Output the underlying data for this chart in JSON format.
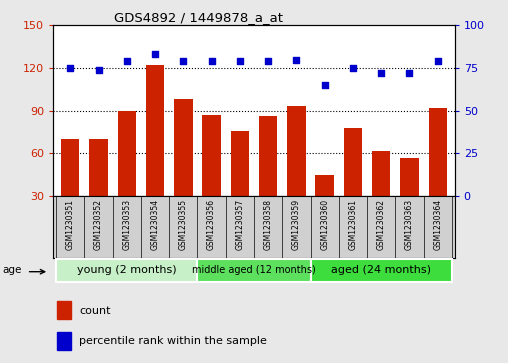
{
  "title": "GDS4892 / 1449878_a_at",
  "samples": [
    "GSM1230351",
    "GSM1230352",
    "GSM1230353",
    "GSM1230354",
    "GSM1230355",
    "GSM1230356",
    "GSM1230357",
    "GSM1230358",
    "GSM1230359",
    "GSM1230360",
    "GSM1230361",
    "GSM1230362",
    "GSM1230363",
    "GSM1230364"
  ],
  "bar_values": [
    70,
    70,
    90,
    122,
    98,
    87,
    76,
    86,
    93,
    45,
    78,
    62,
    57,
    92
  ],
  "dot_values": [
    75,
    74,
    79,
    83,
    79,
    79,
    79,
    79,
    80,
    65,
    75,
    72,
    72,
    79
  ],
  "bar_color": "#cc2200",
  "dot_color": "#0000cc",
  "ylim_left": [
    30,
    150
  ],
  "ylim_right": [
    0,
    100
  ],
  "left_ticks": [
    30,
    60,
    90,
    120,
    150
  ],
  "right_ticks": [
    0,
    25,
    50,
    75,
    100
  ],
  "groups": [
    {
      "label": "young (2 months)",
      "start": 0,
      "end": 5
    },
    {
      "label": "middle aged (12 months)",
      "start": 5,
      "end": 9
    },
    {
      "label": "aged (24 months)",
      "start": 9,
      "end": 14
    }
  ],
  "group_colors": [
    "#c8f0c8",
    "#5de05d",
    "#3ddd3d"
  ],
  "age_label": "age",
  "legend_bar_label": "count",
  "legend_dot_label": "percentile rank within the sample",
  "figure_bg": "#e8e8e8",
  "plot_bg": "#ffffff",
  "grid_lines": [
    60,
    90,
    120
  ],
  "xtick_bg": "#d0d0d0"
}
